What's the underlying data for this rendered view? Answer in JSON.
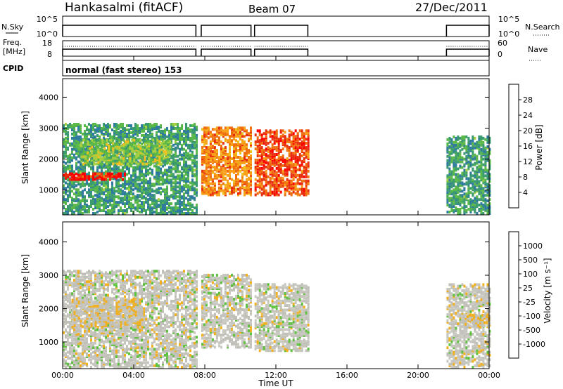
{
  "header": {
    "station": "Hankasalmi (fitACF)",
    "beam": "Beam 07",
    "date": "27/Dec/2011"
  },
  "top_panels": {
    "nsky_label": "N.Sky",
    "nsky_ticks": [
      "10^5",
      "10^0"
    ],
    "nsearch_label": "N.Search",
    "nsearch_ticks": [
      "10^5",
      "10^0"
    ],
    "freq_label": "Freq.",
    "freq_unit": "[MHz]",
    "freq_ticks": [
      "18",
      "8"
    ],
    "nave_label": "Nave",
    "nave_ticks": [
      "60",
      "0"
    ],
    "cpid_label": "CPID",
    "cpid_text": "normal (fast stereo) 153"
  },
  "colors": {
    "power_scale": [
      "#1020e0",
      "#2848c0",
      "#2f7aa0",
      "#3a9a70",
      "#5ab848",
      "#a8d040",
      "#f0c020",
      "#f8a018",
      "#f07010",
      "#e83010",
      "#ff0000"
    ],
    "velocity_scale": [
      "#e81010",
      "#f05010",
      "#f08a10",
      "#f0b020",
      "#c0c0b8",
      "#c8c8c0",
      "#60c040",
      "#3aa050",
      "#2a7a90",
      "#2040c0"
    ],
    "ground_scatter": "#c8c8c0"
  },
  "chart_data": [
    {
      "type": "heatmap",
      "ylabel": "Slant Range [km]",
      "yticks": [
        "1000",
        "2000",
        "3000",
        "4000"
      ],
      "yrange": [
        200,
        4600
      ],
      "colorbar_label": "Power [dB]",
      "colorbar_ticks": [
        "4",
        "8",
        "12",
        "16",
        "20",
        "24",
        "28"
      ],
      "colorbar_range": [
        0,
        30
      ],
      "blocks": [
        {
          "t0": 0.0,
          "t1": 7.5,
          "r0": 200,
          "r1": 3100,
          "level": 10
        },
        {
          "t0": 0.0,
          "t1": 3.5,
          "r0": 1300,
          "r1": 1500,
          "level": 27
        },
        {
          "t0": 1.0,
          "t1": 6.0,
          "r0": 1800,
          "r1": 2600,
          "level": 14
        },
        {
          "t0": 7.8,
          "t1": 10.6,
          "r0": 800,
          "r1": 3000,
          "level": 22
        },
        {
          "t0": 10.8,
          "t1": 13.8,
          "r0": 800,
          "r1": 2900,
          "level": 25
        },
        {
          "t0": 21.6,
          "t1": 24.0,
          "r0": 200,
          "r1": 2700,
          "level": 10
        }
      ]
    },
    {
      "type": "heatmap",
      "ylabel": "Slant Range [km]",
      "yticks": [
        "1000",
        "2000",
        "3000",
        "4000"
      ],
      "yrange": [
        200,
        4600
      ],
      "colorbar_label": "Velocity [m s⁻¹]",
      "colorbar_ticks": [
        "-1000",
        "-500",
        "-100",
        "-25",
        "25",
        "100",
        "500",
        "1000"
      ],
      "colorbar_range": [
        -1000,
        1000
      ],
      "blocks": [
        {
          "t0": 0.0,
          "t1": 7.5,
          "r0": 200,
          "r1": 3100,
          "level": 0
        },
        {
          "t0": 0.5,
          "t1": 4.5,
          "r0": 1400,
          "r1": 2300,
          "level": -120
        },
        {
          "t0": 7.8,
          "t1": 10.6,
          "r0": 800,
          "r1": 3000,
          "level": 0
        },
        {
          "t0": 10.8,
          "t1": 13.8,
          "r0": 700,
          "r1": 2700,
          "level": 0
        },
        {
          "t0": 21.6,
          "t1": 24.0,
          "r0": 200,
          "r1": 2700,
          "level": 0
        },
        {
          "t0": 22.5,
          "t1": 24.0,
          "r0": 1400,
          "r1": 1800,
          "level": -150
        }
      ]
    }
  ],
  "x_axis": {
    "label": "Time UT",
    "ticks": [
      "00:00",
      "04:00",
      "08:00",
      "12:00",
      "16:00",
      "20:00",
      "00:00"
    ],
    "range_hours": [
      0,
      24
    ]
  }
}
